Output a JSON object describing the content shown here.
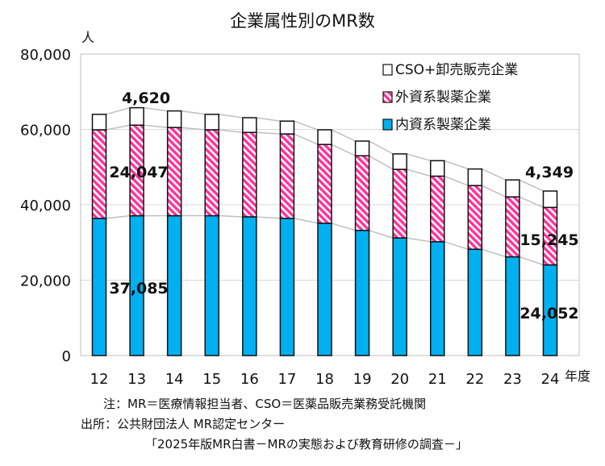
{
  "chart_data": {
    "type": "bar",
    "stacked": true,
    "title": "企業属性別のMR数",
    "ylabel": "人",
    "xlabel": "年度",
    "ylim": [
      0,
      80000
    ],
    "yticks": [
      0,
      20000,
      40000,
      60000,
      80000
    ],
    "ytick_labels": [
      "0",
      "20,000",
      "40,000",
      "60,000",
      "80,000"
    ],
    "grid": true,
    "legend_position": "top-right",
    "categories": [
      "12",
      "13",
      "14",
      "15",
      "16",
      "17",
      "18",
      "19",
      "20",
      "21",
      "22",
      "23",
      "24"
    ],
    "series": [
      {
        "name": "内資系製薬企業",
        "color": "#00b0f0",
        "values": [
          36400,
          37085,
          37100,
          37100,
          36800,
          36400,
          35100,
          33200,
          31200,
          30200,
          28200,
          26200,
          24052
        ]
      },
      {
        "name": "外資系製薬企業",
        "color": "#ff3399",
        "pattern": "hatched",
        "values": [
          23500,
          24047,
          23400,
          22800,
          22400,
          22400,
          20900,
          19800,
          18200,
          17400,
          16900,
          15900,
          15245
        ]
      },
      {
        "name": "CSO+卸売販売企業",
        "color": "#ffffff",
        "values": [
          4100,
          4620,
          4400,
          4100,
          3900,
          3400,
          3900,
          3900,
          4100,
          4100,
          4400,
          4500,
          4349
        ]
      }
    ],
    "data_labels": [
      {
        "text": "4,620",
        "category": "13",
        "series": "CSO+卸売販売企業"
      },
      {
        "text": "24,047",
        "category": "13",
        "series": "外資系製薬企業"
      },
      {
        "text": "37,085",
        "category": "13",
        "series": "内資系製薬企業"
      },
      {
        "text": "4,349",
        "category": "24",
        "series": "CSO+卸売販売企業"
      },
      {
        "text": "15,245",
        "category": "24",
        "series": "外資系製薬企業"
      },
      {
        "text": "24,052",
        "category": "24",
        "series": "内資系製薬企業"
      }
    ]
  },
  "notes": {
    "line1": "注：MR＝医療情報担当者、CSO＝医薬品販売業務受託機関",
    "line2": "出所：公共財団法人 MR認定センター",
    "line3": "「2025年版MR白書－MRの実態および教育研修の調査－」"
  }
}
